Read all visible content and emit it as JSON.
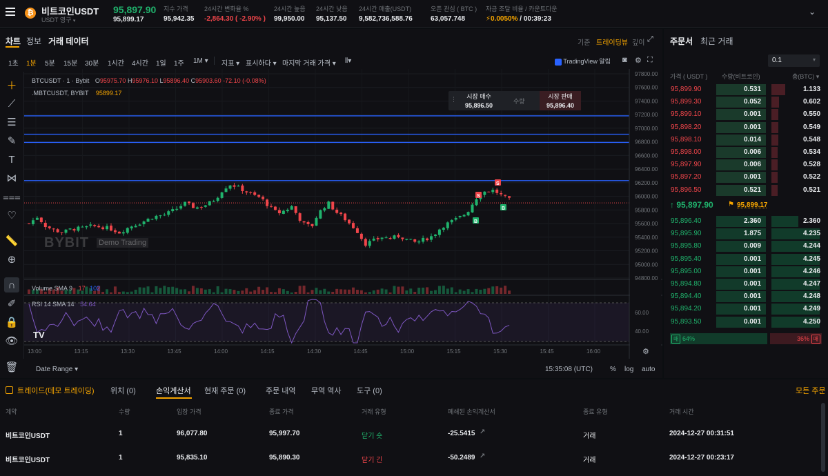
{
  "header": {
    "symbol": "비트코인USDT",
    "subtitle": "USDT 영구",
    "last_price": "95,897.90",
    "mark_price": "95,899.17",
    "stats": [
      {
        "label": "지수 가격",
        "value": "95,942.35",
        "color": "#eaecef"
      },
      {
        "label": "24시간 변화율 %",
        "value": "-2,864.30 ( -2.90% )",
        "color": "#ef454a"
      },
      {
        "label": "24시간 높음",
        "value": "99,950.00",
        "color": "#eaecef"
      },
      {
        "label": "24시간 낮음",
        "value": "95,137.50",
        "color": "#eaecef"
      },
      {
        "label": "24시간 매출(USDT)",
        "value": "9,582,736,588.76",
        "color": "#eaecef"
      },
      {
        "label": "오픈 관심 ( BTC )",
        "value": "63,057.748",
        "color": "#eaecef"
      },
      {
        "label": "자금 조달 비율 / 카운트다운",
        "value_rate": "0.0050%",
        "value_time": " / 00:39:23",
        "color": "#f7a600"
      }
    ]
  },
  "chart_tabs": {
    "chart": "차트",
    "info": "정보",
    "trade_data": "거래 데이터",
    "standard": "기준",
    "tradingview": "트레이딩뷰",
    "depth": "깊이"
  },
  "timeframes": [
    "1초",
    "1분",
    "5분",
    "15분",
    "30분",
    "1시간",
    "4시간",
    "1일",
    "1주",
    "1M ▾"
  ],
  "chart_toolbar": {
    "indicators": "지표 ▾",
    "display": "표시하다 ▾",
    "last_price": "마지막 거래 가격 ▾",
    "tv_alert": "TradingView 알림"
  },
  "chart_legend": {
    "main": "BTCUSDT · 1 · Bybit",
    "ohlc": [
      {
        "k": "O",
        "v": "95975.70"
      },
      {
        "k": "H",
        "v": "95976.10"
      },
      {
        "k": "L",
        "v": "95896.40"
      },
      {
        "k": "C",
        "v": "95903.60"
      }
    ],
    "change": "-72.10 (-0.08%)",
    "mark": ".MBTCUSDT, BYBIT",
    "mark_val": "95899.17",
    "watermark": "BYBIT",
    "watermark_sub": "Demo Trading"
  },
  "quick_trade": {
    "buy_label": "시장 매수",
    "buy_price": "95,896.50",
    "qty": "수량",
    "sell_label": "시장 판매",
    "sell_price": "95,896.40"
  },
  "price_axis": [
    "97800.00",
    "97600.00",
    "97400.00",
    "97200.00",
    "97000.00",
    "96800.00",
    "96600.00",
    "96400.00",
    "96200.00",
    "96000.00",
    "95800.00",
    "95600.00",
    "95400.00",
    "95200.00",
    "95000.00",
    "94800.00"
  ],
  "horizontal_lines": [
    97182.62,
    96912.6,
    96792.28,
    96231.45
  ],
  "axis_tags": {
    "current": "95903.60",
    "mark": "95899.17"
  },
  "time_axis": [
    "13:00",
    "13:15",
    "13:30",
    "13:45",
    "14:00",
    "14:15",
    "14:30",
    "14:45",
    "15:00",
    "15:15",
    "15:30",
    "15:45",
    "16:00"
  ],
  "volume_legend": {
    "label": "Volume SMA 9",
    "v1": "17",
    "v2": "102"
  },
  "rsi_legend": {
    "label": "RSI 14 SMA 14",
    "v": "54.64",
    "axis": [
      "60.00",
      "40.00"
    ]
  },
  "chart_footer": {
    "date_range": "Date Range ▾",
    "time": "15:35:08 (UTC)",
    "pct": "%",
    "log": "log",
    "auto": "auto"
  },
  "colors": {
    "up": "#20b26c",
    "down": "#ef454a",
    "hline": "#2962ff",
    "accent": "#f7a600",
    "rsi": "#7e57c2"
  },
  "orderbook": {
    "tab_book": "주문서",
    "tab_trades": "최근 거래",
    "precision": "0.1",
    "col_price": "가격 ( USDT )",
    "col_qty": "수량(비트코인)",
    "col_total": "총(BTC) ▾",
    "asks": [
      {
        "price": "95,899.90",
        "qty": "0.531",
        "total": "1.133"
      },
      {
        "price": "95,899.30",
        "qty": "0.052",
        "total": "0.602"
      },
      {
        "price": "95,899.10",
        "qty": "0.001",
        "total": "0.550"
      },
      {
        "price": "95,898.20",
        "qty": "0.001",
        "total": "0.549"
      },
      {
        "price": "95,898.10",
        "qty": "0.014",
        "total": "0.548"
      },
      {
        "price": "95,898.00",
        "qty": "0.006",
        "total": "0.534"
      },
      {
        "price": "95,897.90",
        "qty": "0.006",
        "total": "0.528"
      },
      {
        "price": "95,897.20",
        "qty": "0.001",
        "total": "0.522"
      },
      {
        "price": "95,896.50",
        "qty": "0.521",
        "total": "0.521"
      }
    ],
    "last": "↑ 95,897.90",
    "mark": "95,899.17",
    "bids": [
      {
        "price": "95,896.40",
        "qty": "2.360",
        "total": "2.360"
      },
      {
        "price": "95,895.90",
        "qty": "1.875",
        "total": "4.235"
      },
      {
        "price": "95,895.80",
        "qty": "0.009",
        "total": "4.244"
      },
      {
        "price": "95,895.40",
        "qty": "0.001",
        "total": "4.245"
      },
      {
        "price": "95,895.00",
        "qty": "0.001",
        "total": "4.246"
      },
      {
        "price": "95,894.80",
        "qty": "0.001",
        "total": "4.247"
      },
      {
        "price": "95,894.40",
        "qty": "0.001",
        "total": "4.248"
      },
      {
        "price": "95,894.20",
        "qty": "0.001",
        "total": "4.249"
      },
      {
        "price": "95,893.50",
        "qty": "0.001",
        "total": "4.250"
      }
    ],
    "ratio_buy": "64%",
    "ratio_sell": "36%",
    "ratio_buy_badge": "매",
    "ratio_sell_badge": "매",
    "ratio_buy_fraction": 0.64
  },
  "bottom": {
    "tabs": [
      "트레이드(데모 트레이딩)",
      "위치 (0)",
      "손익계산서",
      "현재 주문 (0)",
      "주문 내역",
      "무역 역사",
      "도구 (0)"
    ],
    "all_orders": "모든 주문",
    "headers": [
      "계약",
      "수량",
      "입장 가격",
      "종료 가격",
      "거래 유형",
      "폐쇄된 손익계산서",
      "종료 유형",
      "거래 시간"
    ],
    "rows": [
      {
        "contract": "비트코인USDT",
        "qty": "1",
        "entry": "96,077.80",
        "exit": "95,997.70",
        "type": "닫기 숏",
        "type_color": "#20b26c",
        "pnl": "-25.5415",
        "close_type": "거래",
        "time": "2024-12-27 00:31:51"
      },
      {
        "contract": "비트코인USDT",
        "qty": "1",
        "entry": "95,835.10",
        "exit": "95,890.30",
        "type": "닫기 긴",
        "type_color": "#ef454a",
        "pnl": "-50.2489",
        "close_type": "거래",
        "time": "2024-12-27 00:23:17"
      }
    ]
  }
}
